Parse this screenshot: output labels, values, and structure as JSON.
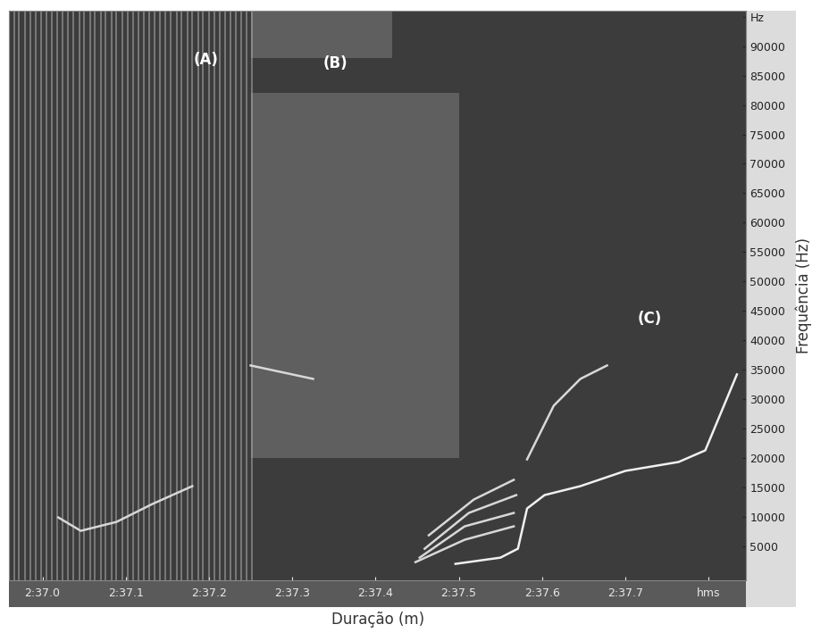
{
  "chart_data": {
    "type": "spectrogram",
    "x_label": "Duração (m)",
    "y_label": "Frequência (Hz)",
    "xlim": [
      156.96,
      157.845
    ],
    "ylim": [
      -800,
      96000
    ],
    "xticks": [
      {
        "value": 157.0,
        "label": "2:37.0"
      },
      {
        "value": 157.1,
        "label": "2:37.1"
      },
      {
        "value": 157.2,
        "label": "2:37.2"
      },
      {
        "value": 157.3,
        "label": "2:37.3"
      },
      {
        "value": 157.4,
        "label": "2:37.4"
      },
      {
        "value": 157.5,
        "label": "2:37.5"
      },
      {
        "value": 157.6,
        "label": "2:37.6"
      },
      {
        "value": 157.7,
        "label": "2:37.7"
      },
      {
        "value": 157.8,
        "label": "hms"
      }
    ],
    "yticks": [
      5000,
      10000,
      15000,
      20000,
      25000,
      30000,
      35000,
      40000,
      45000,
      50000,
      55000,
      60000,
      65000,
      70000,
      75000,
      80000,
      85000,
      90000,
      {
        "value": 95000,
        "label": "Hz"
      }
    ],
    "grid": false,
    "clicks": [
      156.966,
      156.972,
      156.979,
      156.985,
      156.992,
      156.998,
      157.005,
      157.011,
      157.018,
      157.024,
      157.031,
      157.037,
      157.044,
      157.05,
      157.057,
      157.063,
      157.07,
      157.076,
      157.083,
      157.089,
      157.096,
      157.102,
      157.109,
      157.115,
      157.122,
      157.128,
      157.135,
      157.141,
      157.148,
      157.154,
      157.161,
      157.167,
      157.174,
      157.18,
      157.187,
      157.193,
      157.2,
      157.206,
      157.213,
      157.219,
      157.226,
      157.232,
      157.239,
      157.245,
      157.252
    ],
    "regions": [
      {
        "x": [
          157.25,
          157.5
        ],
        "y": [
          20000,
          82000
        ]
      },
      {
        "x": [
          157.25,
          157.42
        ],
        "y": [
          88000,
          96000
        ]
      }
    ],
    "series": [
      {
        "color": "#d8d8d8",
        "x": [
          157.019,
          157.046,
          157.089,
          157.132,
          157.18
        ],
        "values": [
          9860,
          7580,
          9100,
          12140,
          15180
        ]
      },
      {
        "color": "#d8d8d8",
        "x": [
          157.25,
          157.325
        ],
        "values": [
          35700,
          33420
        ]
      },
      {
        "color": "#d8d8d8",
        "x": [
          157.448,
          157.507,
          157.566
        ],
        "values": [
          2260,
          6060,
          8340
        ]
      },
      {
        "color": "#d8d8d8",
        "x": [
          157.453,
          157.507,
          157.566
        ],
        "values": [
          3020,
          8340,
          10620
        ]
      },
      {
        "color": "#d8d8d8",
        "x": [
          157.459,
          157.512,
          157.569
        ],
        "values": [
          4540,
          10620,
          13660
        ]
      },
      {
        "color": "#d8d8d8",
        "x": [
          157.464,
          157.518,
          157.566
        ],
        "values": [
          6820,
          12900,
          16250
        ]
      },
      {
        "color": "#f0f0f0",
        "x": [
          157.496,
          157.55,
          157.571,
          157.582,
          157.603,
          157.646,
          157.7,
          157.764,
          157.796,
          157.834
        ],
        "values": [
          1960,
          3020,
          4540,
          11380,
          13660,
          15180,
          17770,
          19290,
          21260,
          34180
        ]
      },
      {
        "color": "#d8d8d8",
        "x": [
          157.582,
          157.614,
          157.646,
          157.678
        ],
        "values": [
          19740,
          28860,
          33420,
          35700
        ]
      }
    ],
    "annotations": [
      {
        "text": "(A)",
        "x": 157.196,
        "y": 87700
      },
      {
        "text": "(B)",
        "x": 157.352,
        "y": 87100
      },
      {
        "text": "(C)",
        "x": 157.729,
        "y": 43600
      }
    ]
  }
}
